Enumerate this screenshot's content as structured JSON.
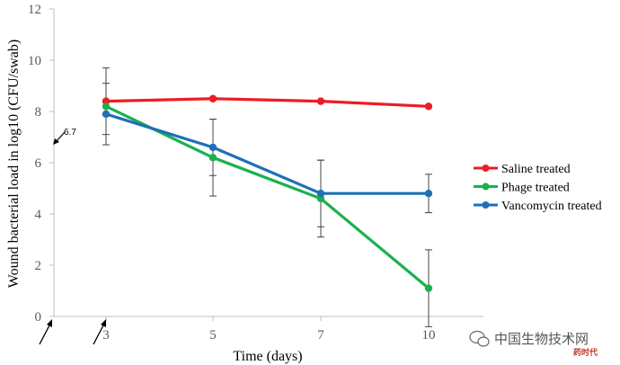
{
  "chart_data": {
    "type": "line",
    "xlabel": "Time (days)",
    "ylabel": "Wound bacterial load in log10 (CFU/swab)",
    "categories": [
      "3",
      "5",
      "7",
      "10"
    ],
    "ylim": [
      0,
      12
    ],
    "yticks": [
      "0",
      "2",
      "4",
      "6",
      "8",
      "10",
      "12"
    ],
    "grid": false,
    "legend_position": "right",
    "series": [
      {
        "name": "Saline treated",
        "color": "#ee1c25",
        "values": [
          8.4,
          8.5,
          8.4,
          8.2
        ],
        "err": [
          1.3,
          0,
          0,
          0
        ]
      },
      {
        "name": "Phage treated",
        "color": "#1ab14d",
        "values": [
          8.2,
          6.2,
          4.6,
          1.1
        ],
        "err": [
          0,
          1.5,
          1.5,
          1.5
        ]
      },
      {
        "name": "Vancomycin treated",
        "color": "#1f6fb5",
        "values": [
          7.9,
          6.6,
          4.8,
          4.8
        ],
        "err": [
          1.2,
          1.1,
          1.3,
          0.75
        ]
      }
    ],
    "annotations": [
      {
        "text": "6.7"
      }
    ]
  },
  "watermark": {
    "text": "中国生物技术网",
    "sub": "药时代",
    "icon": "wechat-icon"
  }
}
